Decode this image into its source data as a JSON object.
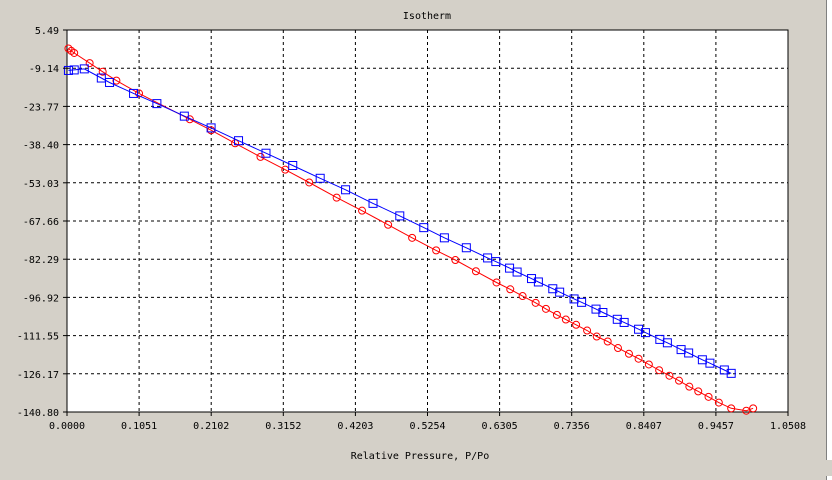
{
  "chart_data": {
    "type": "line",
    "title": "Isotherm",
    "xlabel": "Relative Pressure, P/Po",
    "ylabel": "",
    "xlim": [
      0.0,
      1.0508
    ],
    "ylim": [
      -140.8,
      5.49
    ],
    "x_ticks": [
      "0.0000",
      "0.1051",
      "0.2102",
      "0.3152",
      "0.4203",
      "0.5254",
      "0.6305",
      "0.7356",
      "0.8407",
      "0.9457",
      "1.0508"
    ],
    "y_ticks": [
      "5.49",
      "-9.14",
      "-23.77",
      "-38.40",
      "-53.03",
      "-67.66",
      "-82.29",
      "-96.92",
      "-111.55",
      "-126.17",
      "-140.80"
    ],
    "grid": true,
    "series": [
      {
        "marker": "circle",
        "color": "#ff0000",
        "points": [
          [
            0.0021,
            -1.6
          ],
          [
            0.0063,
            -2.5
          ],
          [
            0.0105,
            -3.3
          ],
          [
            0.033,
            -7.2
          ],
          [
            0.052,
            -10.5
          ],
          [
            0.072,
            -13.9
          ],
          [
            0.105,
            -18.8
          ],
          [
            0.179,
            -28.7
          ],
          [
            0.21,
            -32.9
          ],
          [
            0.245,
            -37.9
          ],
          [
            0.282,
            -43.1
          ],
          [
            0.318,
            -48.0
          ],
          [
            0.353,
            -52.9
          ],
          [
            0.393,
            -58.7
          ],
          [
            0.43,
            -63.7
          ],
          [
            0.468,
            -69.1
          ],
          [
            0.503,
            -74.1
          ],
          [
            0.538,
            -78.9
          ],
          [
            0.566,
            -82.6
          ],
          [
            0.596,
            -86.9
          ],
          [
            0.626,
            -91.2
          ],
          [
            0.646,
            -93.8
          ],
          [
            0.664,
            -96.4
          ],
          [
            0.683,
            -99.0
          ],
          [
            0.698,
            -101.3
          ],
          [
            0.714,
            -103.6
          ],
          [
            0.727,
            -105.4
          ],
          [
            0.742,
            -107.4
          ],
          [
            0.758,
            -109.6
          ],
          [
            0.772,
            -111.9
          ],
          [
            0.788,
            -113.8
          ],
          [
            0.803,
            -116.3
          ],
          [
            0.819,
            -118.5
          ],
          [
            0.833,
            -120.4
          ],
          [
            0.848,
            -122.6
          ],
          [
            0.863,
            -124.8
          ],
          [
            0.878,
            -126.9
          ],
          [
            0.892,
            -128.8
          ],
          [
            0.907,
            -131.1
          ],
          [
            0.92,
            -132.9
          ],
          [
            0.935,
            -135.0
          ],
          [
            0.95,
            -137.2
          ],
          [
            0.968,
            -139.4
          ],
          [
            0.99,
            -140.3
          ],
          [
            1.0,
            -139.4
          ]
        ]
      },
      {
        "marker": "square",
        "color": "#0000ff",
        "points": [
          [
            0.0021,
            -10.0
          ],
          [
            0.0105,
            -9.8
          ],
          [
            0.0252,
            -9.4
          ],
          [
            0.05,
            -12.9
          ],
          [
            0.062,
            -14.6
          ],
          [
            0.097,
            -18.8
          ],
          [
            0.131,
            -22.7
          ],
          [
            0.171,
            -27.5
          ],
          [
            0.21,
            -32.0
          ],
          [
            0.25,
            -36.9
          ],
          [
            0.29,
            -41.7
          ],
          [
            0.329,
            -46.4
          ],
          [
            0.369,
            -51.3
          ],
          [
            0.406,
            -55.7
          ],
          [
            0.446,
            -60.9
          ],
          [
            0.485,
            -65.7
          ],
          [
            0.52,
            -70.2
          ],
          [
            0.55,
            -74.1
          ],
          [
            0.582,
            -77.9
          ],
          [
            0.613,
            -81.8
          ],
          [
            0.625,
            -83.2
          ],
          [
            0.645,
            -85.7
          ],
          [
            0.656,
            -87.2
          ],
          [
            0.677,
            -89.7
          ],
          [
            0.687,
            -91.0
          ],
          [
            0.708,
            -93.6
          ],
          [
            0.718,
            -94.9
          ],
          [
            0.739,
            -97.5
          ],
          [
            0.75,
            -98.8
          ],
          [
            0.771,
            -101.4
          ],
          [
            0.781,
            -102.7
          ],
          [
            0.802,
            -105.3
          ],
          [
            0.812,
            -106.5
          ],
          [
            0.833,
            -109.1
          ],
          [
            0.843,
            -110.4
          ],
          [
            0.864,
            -113.0
          ],
          [
            0.875,
            -114.3
          ],
          [
            0.895,
            -116.9
          ],
          [
            0.906,
            -118.2
          ],
          [
            0.926,
            -120.8
          ],
          [
            0.937,
            -122.1
          ],
          [
            0.958,
            -124.7
          ],
          [
            0.968,
            -126.0
          ]
        ]
      }
    ]
  }
}
